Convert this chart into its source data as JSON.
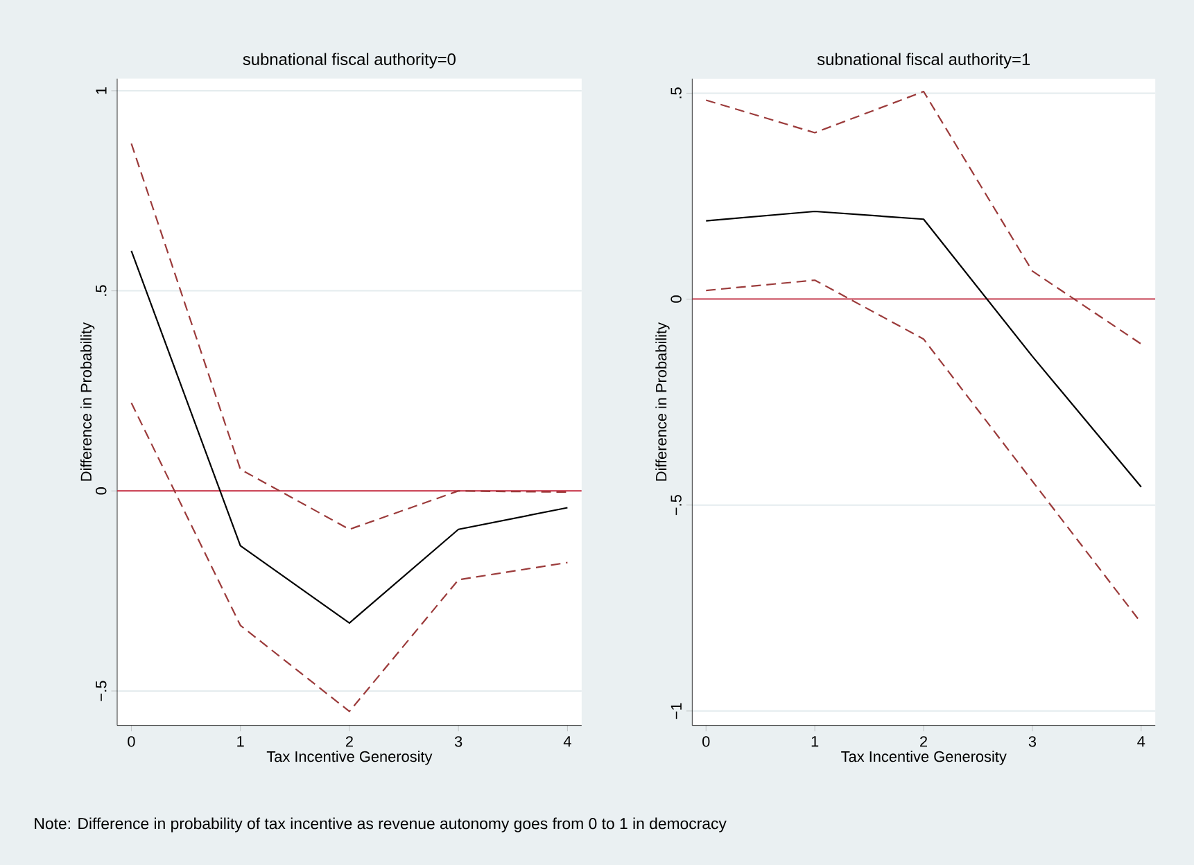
{
  "chart_data": [
    {
      "type": "line",
      "title": "subnational fiscal authority=0",
      "xlabel": "Tax Incentive Generosity",
      "ylabel": "Difference in Probability",
      "x": [
        0,
        1,
        2,
        3,
        4
      ],
      "xlim": [
        -0.13,
        4.13
      ],
      "xticks": [
        0,
        1,
        2,
        3,
        4
      ],
      "ylim": [
        -0.586,
        1.03
      ],
      "yticks": [
        {
          "value": -0.5,
          "label": "−.5"
        },
        0,
        {
          "value": 0.5,
          "label": ".5"
        },
        1
      ],
      "grid": "y",
      "marker": "none",
      "series": [
        {
          "color": "#000000",
          "line_style": "solid",
          "values": [
            0.6,
            -0.137,
            -0.33,
            -0.096,
            -0.042
          ]
        },
        {
          "color": "#9b3a3a",
          "line_style": "dashed",
          "values": [
            0.868,
            0.054,
            -0.096,
            0.0,
            -0.003
          ]
        },
        {
          "color": "#9b3a3a",
          "line_style": "dashed",
          "values": [
            0.22,
            -0.336,
            -0.551,
            -0.222,
            -0.179
          ]
        }
      ],
      "ref_lines": [
        {
          "axis": "y",
          "value": 0,
          "color": "#c8283c"
        }
      ]
    },
    {
      "type": "line",
      "title": "subnational fiscal authority=1",
      "xlabel": "Tax Incentive Generosity",
      "ylabel": "Difference in Probability",
      "x": [
        0,
        1,
        2,
        3,
        4
      ],
      "xlim": [
        -0.127,
        4.13
      ],
      "xticks": [
        0,
        1,
        2,
        3,
        4
      ],
      "ylim": [
        -1.035,
        0.535
      ],
      "yticks": [
        {
          "value": -1,
          "label": "−1"
        },
        {
          "value": -0.5,
          "label": "−.5"
        },
        0,
        {
          "value": 0.5,
          "label": ".5"
        }
      ],
      "grid": "y",
      "marker": "none",
      "series": [
        {
          "color": "#000000",
          "line_style": "solid",
          "values": [
            0.19,
            0.213,
            0.194,
            -0.139,
            -0.456
          ]
        },
        {
          "color": "#9b3a3a",
          "line_style": "dashed",
          "values": [
            0.483,
            0.404,
            0.504,
            0.068,
            -0.109
          ]
        },
        {
          "color": "#9b3a3a",
          "line_style": "dashed",
          "values": [
            0.021,
            0.046,
            -0.097,
            -0.442,
            -0.786
          ]
        }
      ],
      "ref_lines": [
        {
          "axis": "y",
          "value": 0,
          "color": "#c8283c"
        }
      ],
      "annotations": [
        "Note: Difference in probability of tax incentive as revenue autonomy goes from 0 to 1 in democracy"
      ]
    }
  ]
}
